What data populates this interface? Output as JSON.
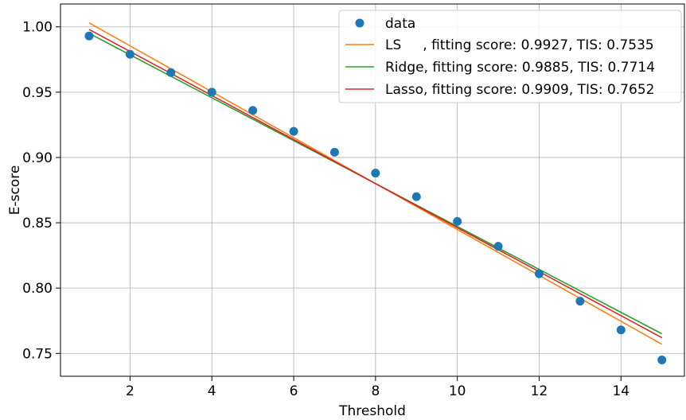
{
  "chart_data": {
    "type": "scatter",
    "title": "",
    "xlabel": "Threshold",
    "ylabel": "E-score",
    "xlim": [
      0.3,
      15.55
    ],
    "ylim": [
      0.7325,
      1.0175
    ],
    "xticks": [
      2,
      4,
      6,
      8,
      10,
      12,
      14
    ],
    "xtick_labels": [
      "2",
      "4",
      "6",
      "8",
      "10",
      "12",
      "14"
    ],
    "yticks": [
      0.75,
      0.8,
      0.85,
      0.9,
      0.95,
      1.0
    ],
    "ytick_labels": [
      "0.75",
      "0.80",
      "0.85",
      "0.90",
      "0.95",
      "1.00"
    ],
    "grid": true,
    "legend_position": "top-right",
    "scatter": {
      "name": "data",
      "color": "#1f77b4",
      "x": [
        1,
        2,
        3,
        4,
        5,
        6,
        7,
        8,
        9,
        10,
        11,
        12,
        13,
        14,
        15
      ],
      "y": [
        0.993,
        0.979,
        0.965,
        0.95,
        0.936,
        0.92,
        0.904,
        0.888,
        0.87,
        0.851,
        0.832,
        0.811,
        0.79,
        0.768,
        0.745
      ]
    },
    "series": [
      {
        "name": "LS     , fitting score: 0.9927, TIS: 0.7535",
        "color": "#ff7f0e",
        "x": [
          1,
          15
        ],
        "y": [
          1.003,
          0.757
        ]
      },
      {
        "name": "Ridge, fitting score: 0.9885, TIS: 0.7714",
        "color": "#2ca02c",
        "x": [
          1,
          15
        ],
        "y": [
          0.995,
          0.765
        ]
      },
      {
        "name": "Lasso, fitting score: 0.9909, TIS: 0.7652",
        "color": "#d62728",
        "x": [
          1,
          15
        ],
        "y": [
          0.998,
          0.762
        ]
      }
    ]
  }
}
